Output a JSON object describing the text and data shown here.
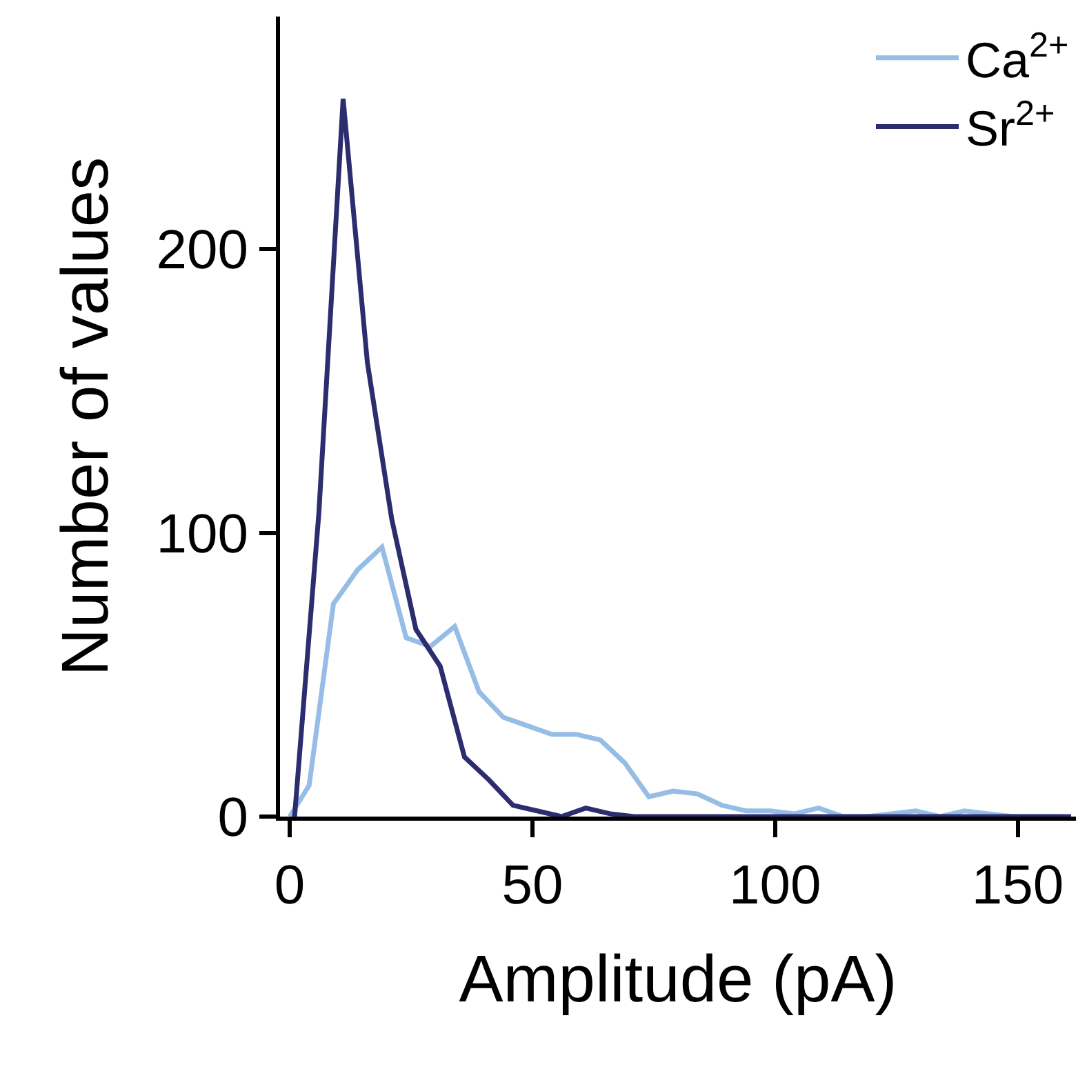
{
  "chart_data": {
    "type": "line",
    "xlabel": "Amplitude (pA)",
    "ylabel": "Number of values",
    "xlim": [
      -2,
      162
    ],
    "ylim": [
      0,
      282
    ],
    "xticks": [
      0,
      50,
      100,
      150
    ],
    "yticks": [
      0,
      100,
      200
    ],
    "legend": "top right",
    "marker": "none",
    "line_style": "solid",
    "series": [
      {
        "name": "Ca$^{2+}$",
        "color": "#95bde6",
        "x": [
          0,
          4,
          9,
          14,
          19,
          24,
          29,
          34,
          39,
          44,
          49,
          54,
          59,
          64,
          69,
          74,
          79,
          84,
          89,
          94,
          99,
          104,
          109,
          114,
          119,
          124,
          129,
          134,
          139,
          144,
          149,
          154,
          159
        ],
        "values": [
          0,
          11,
          75,
          87,
          95,
          63,
          60,
          67,
          44,
          35,
          32,
          29,
          29,
          27,
          19,
          7,
          9,
          8,
          4,
          2,
          2,
          1,
          3,
          0,
          0,
          1,
          2,
          0,
          2,
          1,
          0,
          0,
          0
        ]
      },
      {
        "name": "Sr$^{2+}$",
        "color": "#2b2d6e",
        "x": [
          1,
          6,
          11,
          16,
          21,
          26,
          31,
          36,
          41,
          46,
          51,
          56,
          61,
          66,
          71,
          76,
          81,
          86,
          91,
          96,
          101,
          106,
          111,
          116,
          121,
          126,
          131,
          136,
          141,
          146,
          151,
          156,
          161
        ],
        "values": [
          0,
          107,
          253,
          160,
          105,
          66,
          53,
          21,
          13,
          4,
          2,
          0,
          3,
          1,
          0,
          0,
          0,
          0,
          0,
          0,
          0,
          0,
          0,
          0,
          0,
          0,
          0,
          0,
          0,
          0,
          0,
          0,
          0
        ]
      }
    ]
  }
}
